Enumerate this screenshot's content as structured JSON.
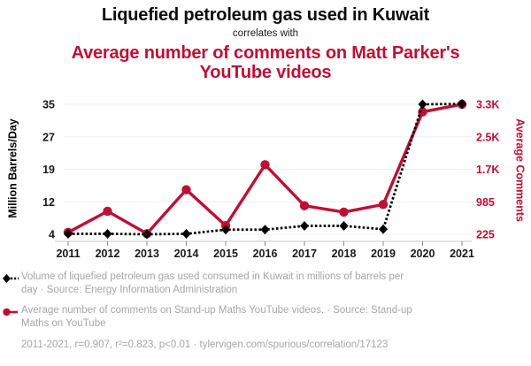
{
  "header": {
    "title_black": "Liquefied petroleum gas used in Kuwait",
    "connector": "correlates with",
    "title_red": "Average number of comments on Matt Parker's YouTube videos"
  },
  "colors": {
    "accent_red": "#bd1034",
    "footer_gray": "#a6a6a6",
    "axis_line": "#c4c4c4",
    "gridline": "#f0f0f0",
    "tick_text": "#1a1a1a",
    "series_black": "#000000"
  },
  "chart_data": {
    "type": "line",
    "title": "Liquefied petroleum gas used in Kuwait correlates with Average number of comments on Matt Parker's YouTube videos",
    "x": [
      2011,
      2012,
      2013,
      2014,
      2015,
      2016,
      2017,
      2018,
      2019,
      2020,
      2021
    ],
    "x_ticks": [
      "2011",
      "2012",
      "2013",
      "2014",
      "2015",
      "2016",
      "2017",
      "2018",
      "2019",
      "2020",
      "2021"
    ],
    "grid": true,
    "legend_position": "below",
    "series": [
      {
        "name": "Volume of liquefied petroleum gas used consumed in Kuwait (million barrels/day)",
        "axis": "left",
        "color": "#000000",
        "line_style": "dashed",
        "marker": "diamond",
        "values": [
          4.1,
          4.1,
          4.0,
          4.1,
          5.1,
          5.1,
          6.0,
          6.0,
          5.2,
          35.0,
          35.1
        ]
      },
      {
        "name": "Average number of comments on Stand-up Maths YouTube videos",
        "axis": "right",
        "color": "#bd1034",
        "line_style": "solid",
        "marker": "circle",
        "values": [
          270,
          770,
          240,
          1280,
          430,
          1870,
          900,
          750,
          930,
          3120,
          3300
        ]
      }
    ],
    "left_axis": {
      "label": "Million Barrels/Day",
      "ticks": [
        "35",
        "27",
        "19",
        "12",
        "4"
      ],
      "range": [
        35,
        4
      ]
    },
    "right_axis": {
      "label": "Average Comments",
      "ticks": [
        "3.3K",
        "2.5K",
        "1.7K",
        "985",
        "225"
      ],
      "range": [
        3300,
        225
      ]
    }
  },
  "footer": {
    "legend_black": "Volume of liquefied petroleum gas used consumed in Kuwait in millions of barrels per day · Source: Energy Information Administration",
    "legend_red": "Average number of comments on Stand-up Maths YouTube videos. · Source: Stand-up Maths on YouTube",
    "stats": "2011-2021, r=0.907, r²=0.823, p<0.01 · tylervigen.com/spurious/correlation/17123"
  }
}
